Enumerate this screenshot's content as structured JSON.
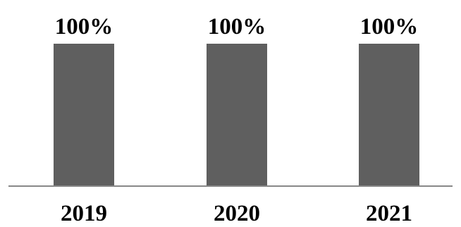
{
  "chart_data": {
    "type": "bar",
    "categories": [
      "2019",
      "2020",
      "2021"
    ],
    "values": [
      100,
      100,
      100
    ],
    "data_labels": [
      "100%",
      "100%",
      "100%"
    ],
    "ylim": [
      0,
      100
    ],
    "grid": false,
    "legend": "none",
    "bar_color": "#5f5f5f",
    "axis_color": "#888888",
    "text_color": "#000000"
  }
}
